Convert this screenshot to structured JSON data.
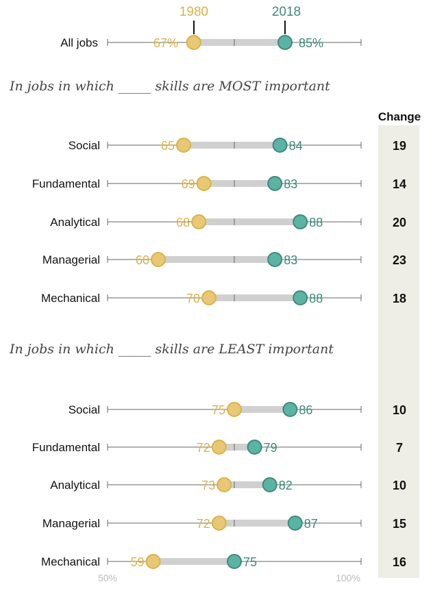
{
  "colors": {
    "y1980": "#D9B24A",
    "y1980_fill": "#E8C875",
    "y2018": "#3D8A7A",
    "y2018_fill": "#5BB3A3",
    "range_bar": "#D0D0D0",
    "axis_line": "#666666",
    "change_bg": "#EEEEE6",
    "label": "#111111",
    "section_title": "#444444",
    "tick_label": "#BBBBBB"
  },
  "chart_data": {
    "type": "dot-range",
    "x_range": [
      50,
      100
    ],
    "x_tick_labels": [
      "50%",
      "100%"
    ],
    "legend": {
      "start": "1980",
      "end": "2018"
    },
    "change_header": "Change",
    "all_jobs": {
      "label": "All jobs",
      "start": 67,
      "end": 85,
      "start_label": "67%",
      "end_label": "85%"
    },
    "groups": [
      {
        "title": "In jobs in which _____ skills are MOST important",
        "rows": [
          {
            "label": "Social",
            "start": 65,
            "end": 84,
            "change": "19"
          },
          {
            "label": "Fundamental",
            "start": 69,
            "end": 83,
            "change": "14"
          },
          {
            "label": "Analytical",
            "start": 68,
            "end": 88,
            "change": "20"
          },
          {
            "label": "Managerial",
            "start": 60,
            "end": 83,
            "change": "23"
          },
          {
            "label": "Mechanical",
            "start": 70,
            "end": 88,
            "change": "18"
          }
        ]
      },
      {
        "title": "In jobs in which _____ skills are LEAST important",
        "rows": [
          {
            "label": "Social",
            "start": 75,
            "end": 86,
            "change": "10"
          },
          {
            "label": "Fundamental",
            "start": 72,
            "end": 79,
            "change": "7"
          },
          {
            "label": "Analytical",
            "start": 73,
            "end": 82,
            "change": "10"
          },
          {
            "label": "Managerial",
            "start": 72,
            "end": 87,
            "change": "15"
          },
          {
            "label": "Mechanical",
            "start": 59,
            "end": 75,
            "change": "16"
          }
        ]
      }
    ]
  }
}
